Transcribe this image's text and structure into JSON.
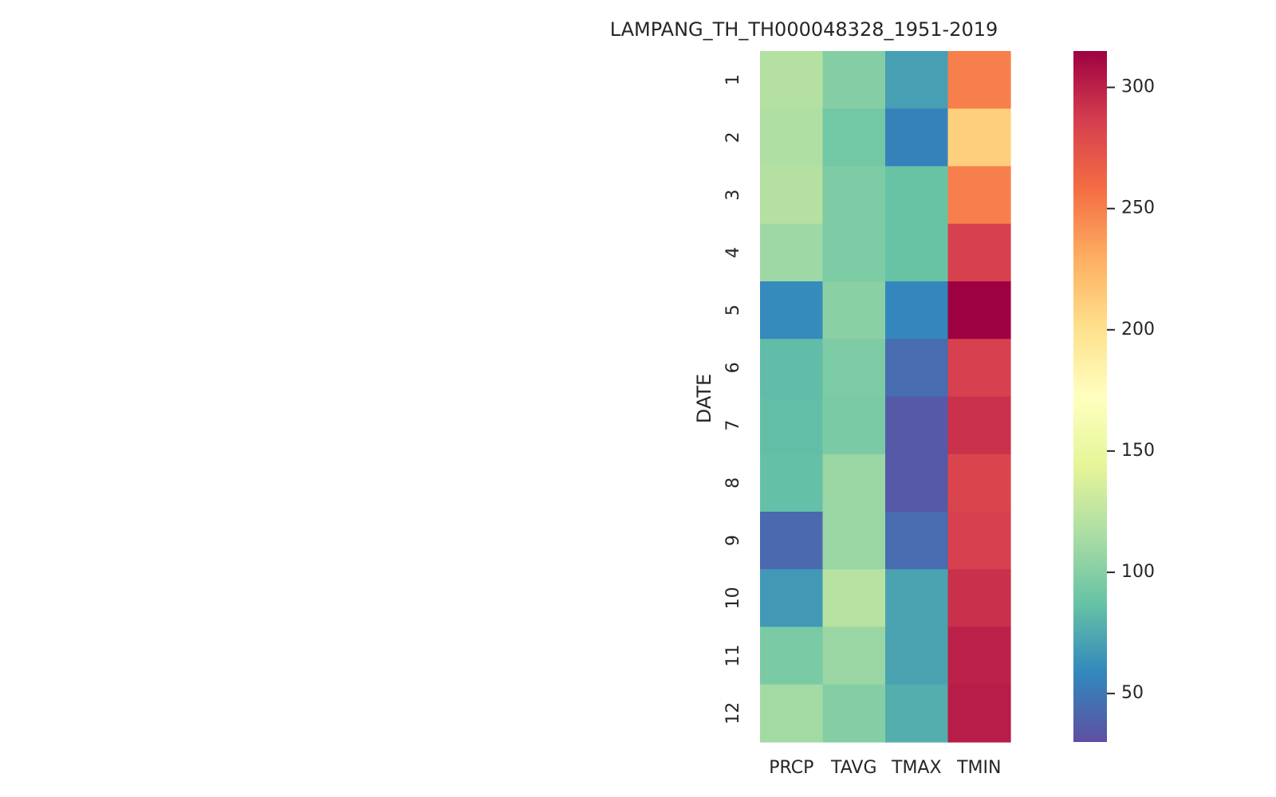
{
  "chart_data": {
    "type": "heatmap",
    "title": "LAMPANG_TH_TH000048328_1951-2019",
    "xlabel": "",
    "ylabel": "DATE",
    "columns": [
      "PRCP",
      "TAVG",
      "TMAX",
      "TMIN"
    ],
    "rows": [
      "1",
      "2",
      "3",
      "4",
      "5",
      "6",
      "7",
      "8",
      "9",
      "10",
      "11",
      "12"
    ],
    "values": [
      [
        120,
        100,
        70,
        250
      ],
      [
        118,
        92,
        55,
        210
      ],
      [
        120,
        96,
        88,
        250
      ],
      [
        110,
        96,
        88,
        285
      ],
      [
        60,
        102,
        58,
        315
      ],
      [
        84,
        96,
        45,
        285
      ],
      [
        85,
        95,
        35,
        292
      ],
      [
        86,
        108,
        35,
        282
      ],
      [
        43,
        108,
        45,
        285
      ],
      [
        67,
        122,
        72,
        293
      ],
      [
        95,
        108,
        72,
        300
      ],
      [
        112,
        100,
        77,
        302
      ]
    ],
    "colormap": "Spectral_r",
    "vmin": 30,
    "vmax": 315,
    "colorbar_ticks": [
      50,
      100,
      150,
      200,
      250,
      300
    ]
  }
}
